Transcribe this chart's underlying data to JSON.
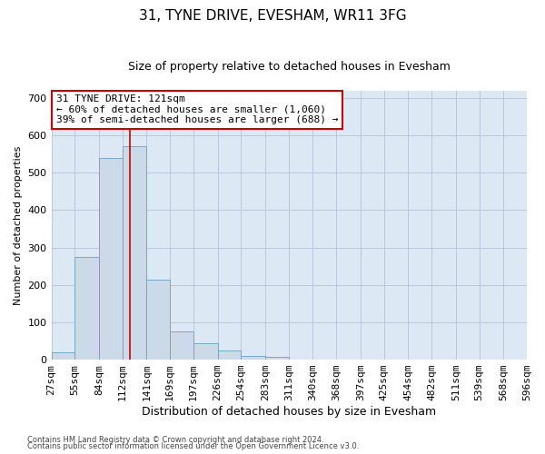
{
  "title": "31, TYNE DRIVE, EVESHAM, WR11 3FG",
  "subtitle": "Size of property relative to detached houses in Evesham",
  "xlabel": "Distribution of detached houses by size in Evesham",
  "ylabel": "Number of detached properties",
  "footer_line1": "Contains HM Land Registry data © Crown copyright and database right 2024.",
  "footer_line2": "Contains public sector information licensed under the Open Government Licence v3.0.",
  "annotation_title": "31 TYNE DRIVE: 121sqm",
  "annotation_line1": "← 60% of detached houses are smaller (1,060)",
  "annotation_line2": "39% of semi-detached houses are larger (688) →",
  "bin_labels": [
    "27sqm",
    "55sqm",
    "84sqm",
    "112sqm",
    "141sqm",
    "169sqm",
    "197sqm",
    "226sqm",
    "254sqm",
    "283sqm",
    "311sqm",
    "340sqm",
    "368sqm",
    "397sqm",
    "425sqm",
    "454sqm",
    "482sqm",
    "511sqm",
    "539sqm",
    "568sqm",
    "596sqm"
  ],
  "bin_edges": [
    27,
    55,
    84,
    112,
    141,
    169,
    197,
    226,
    254,
    283,
    311,
    340,
    368,
    397,
    425,
    454,
    482,
    511,
    539,
    568,
    596
  ],
  "bar_values": [
    20,
    275,
    540,
    570,
    215,
    75,
    45,
    25,
    10,
    7,
    0,
    0,
    0,
    0,
    0,
    0,
    0,
    0,
    0,
    0
  ],
  "bar_color": "#ccd9e8",
  "bar_edge_color": "#6e9fc0",
  "vline_x": 121,
  "vline_color": "#cc0000",
  "ylim": [
    0,
    720
  ],
  "yticks": [
    0,
    100,
    200,
    300,
    400,
    500,
    600,
    700
  ],
  "grid_color": "#b8c8dc",
  "bg_color": "#dce8f4",
  "annotation_box_edge": "#cc0000",
  "title_fontsize": 11,
  "subtitle_fontsize": 9,
  "ylabel_fontsize": 8,
  "xlabel_fontsize": 9,
  "tick_fontsize": 8,
  "annot_fontsize": 8
}
